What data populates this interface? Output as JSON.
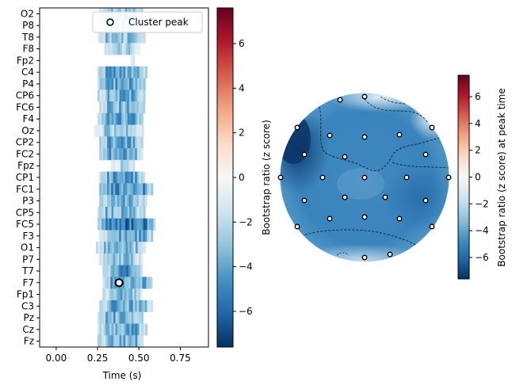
{
  "chart_data": [
    {
      "type": "heatmap",
      "xlabel": "Time (s)",
      "xlim": [
        -0.1,
        0.92
      ],
      "x_ticks": [
        "0.00",
        "0.25",
        "0.50",
        "0.75"
      ],
      "x_tick_values": [
        0.0,
        0.25,
        0.5,
        0.75
      ],
      "channels": [
        "O2",
        "P8",
        "T8",
        "F8",
        "Fp2",
        "C4",
        "P4",
        "CP6",
        "FC6",
        "F4",
        "Oz",
        "CP2",
        "FC2",
        "Fpz",
        "CP1",
        "FC1",
        "P3",
        "CP5",
        "FC5",
        "F3",
        "O1",
        "P7",
        "T7",
        "F7",
        "Fp1",
        "C3",
        "Pz",
        "Cz",
        "Fz"
      ],
      "rows": [
        {
          "segments": [
            [
              0.26,
              0.52,
              -2.5
            ]
          ]
        },
        {
          "segments": [
            [
              0.27,
              0.5,
              -2.0
            ]
          ]
        },
        {
          "segments": [
            [
              0.25,
              0.53,
              -3.0
            ]
          ]
        },
        {
          "segments": [
            [
              0.29,
              0.5,
              -2.0
            ]
          ]
        },
        {
          "segments": [
            [
              0.45,
              0.47,
              -1.5
            ]
          ]
        },
        {
          "segments": [
            [
              0.25,
              0.54,
              -4.0
            ]
          ]
        },
        {
          "segments": [
            [
              0.25,
              0.53,
              -4.2
            ]
          ]
        },
        {
          "segments": [
            [
              0.25,
              0.53,
              -3.8
            ]
          ]
        },
        {
          "segments": [
            [
              0.26,
              0.53,
              -3.5
            ]
          ]
        },
        {
          "segments": [
            [
              0.25,
              0.52,
              -4.0
            ]
          ]
        },
        {
          "segments": [
            [
              0.23,
              0.52,
              -2.5
            ]
          ]
        },
        {
          "segments": [
            [
              0.26,
              0.52,
              -3.8
            ]
          ]
        },
        {
          "segments": [
            [
              0.26,
              0.52,
              -3.9
            ]
          ]
        },
        {
          "segments": [
            [
              0.33,
              0.47,
              -1.8
            ]
          ]
        },
        {
          "segments": [
            [
              0.26,
              0.53,
              -4.0
            ]
          ]
        },
        {
          "segments": [
            [
              0.26,
              0.58,
              -4.5
            ]
          ]
        },
        {
          "segments": [
            [
              0.26,
              0.54,
              -4.0
            ]
          ]
        },
        {
          "segments": [
            [
              0.25,
              0.53,
              -3.5
            ]
          ]
        },
        {
          "segments": [
            [
              0.25,
              0.59,
              -5.5
            ]
          ]
        },
        {
          "segments": [
            [
              0.26,
              0.58,
              -3.8
            ]
          ]
        },
        {
          "segments": [
            [
              0.24,
              0.53,
              -3.0
            ]
          ]
        },
        {
          "segments": [
            [
              0.26,
              0.52,
              -2.8
            ]
          ]
        },
        {
          "segments": [
            [
              0.28,
              0.52,
              -4.5
            ]
          ]
        },
        {
          "segments": [
            [
              0.28,
              0.58,
              -4.0
            ]
          ]
        },
        {
          "segments": [
            [
              0.28,
              0.52,
              -3.0
            ]
          ]
        },
        {
          "segments": [
            [
              0.26,
              0.58,
              -3.8
            ]
          ]
        },
        {
          "segments": [
            [
              0.25,
              0.52,
              -3.5
            ]
          ]
        },
        {
          "segments": [
            [
              0.25,
              0.54,
              -3.7
            ]
          ]
        },
        {
          "segments": [
            [
              0.25,
              0.52,
              -3.5
            ]
          ]
        }
      ],
      "cluster_peak": {
        "channel": "F7",
        "time": 0.38
      },
      "legend": {
        "label": "Cluster peak",
        "position": "top-right"
      },
      "colorbar": {
        "label": "Bootstrap ratio (z score)",
        "ticks": [
          6,
          4,
          2,
          0,
          -2,
          -4,
          -6
        ],
        "range": [
          -7.6,
          7.6
        ],
        "colormap": "RdBu_r"
      }
    },
    {
      "type": "topomap",
      "colorbar": {
        "label": "Bootstrap ratio (z score) at peak time",
        "ticks": [
          6,
          4,
          2,
          0,
          -2,
          -4,
          -6
        ],
        "range": [
          -7.6,
          7.6
        ],
        "colormap": "RdBu_r"
      }
    }
  ]
}
